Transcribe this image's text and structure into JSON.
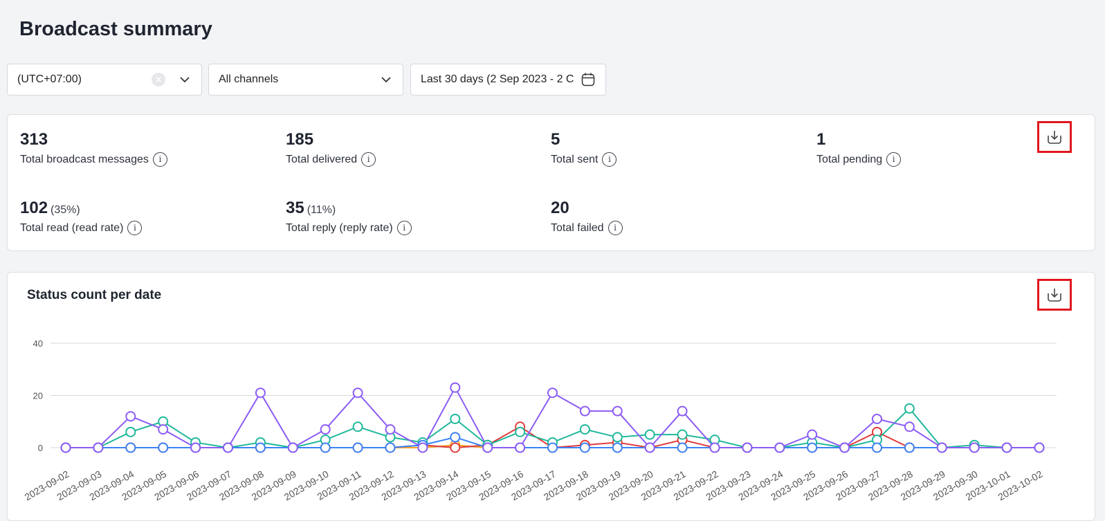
{
  "header": {
    "title": "Broadcast summary"
  },
  "filters": {
    "timezone": "(UTC+07:00)",
    "channel": "All channels",
    "date_range": "Last 30 days (2 Sep 2023 - 2 C"
  },
  "stats": [
    {
      "value": "313",
      "pct": "",
      "label": "Total broadcast messages"
    },
    {
      "value": "185",
      "pct": "",
      "label": "Total delivered"
    },
    {
      "value": "5",
      "pct": "",
      "label": "Total sent"
    },
    {
      "value": "1",
      "pct": "",
      "label": "Total pending"
    },
    {
      "value": "102",
      "pct": "(35%)",
      "label": "Total read (read rate)"
    },
    {
      "value": "35",
      "pct": "(11%)",
      "label": "Total reply (reply rate)"
    },
    {
      "value": "20",
      "pct": "",
      "label": "Total failed"
    }
  ],
  "chart_panel": {
    "title": "Status count per date"
  },
  "chart_data": {
    "type": "line",
    "title": "Status count per date",
    "xlabel": "",
    "ylabel": "",
    "ylim": [
      0,
      40
    ],
    "yticks": [
      0,
      20,
      40
    ],
    "grid": true,
    "categories": [
      "2023-09-02",
      "2023-09-03",
      "2023-09-04",
      "2023-09-05",
      "2023-09-06",
      "2023-09-07",
      "2023-09-08",
      "2023-09-09",
      "2023-09-10",
      "2023-09-11",
      "2023-09-12",
      "2023-09-13",
      "2023-09-14",
      "2023-09-15",
      "2023-09-16",
      "2023-09-17",
      "2023-09-18",
      "2023-09-19",
      "2023-09-20",
      "2023-09-21",
      "2023-09-22",
      "2023-09-23",
      "2023-09-24",
      "2023-09-25",
      "2023-09-26",
      "2023-09-27",
      "2023-09-28",
      "2023-09-29",
      "2023-09-30",
      "2023-10-01",
      "2023-10-02"
    ],
    "series": [
      {
        "color": "#f5a524",
        "values": [
          0,
          0,
          0,
          0,
          0,
          0,
          0,
          0,
          0,
          0,
          0,
          0,
          1,
          0,
          0,
          0,
          0,
          0,
          0,
          0,
          0,
          0,
          0,
          0,
          0,
          0,
          0,
          0,
          0,
          0,
          0
        ]
      },
      {
        "color": "#e03b3b",
        "values": [
          0,
          0,
          0,
          0,
          0,
          0,
          0,
          0,
          0,
          0,
          0,
          1,
          0,
          1,
          8,
          0,
          1,
          2,
          0,
          3,
          0,
          0,
          0,
          0,
          0,
          6,
          0,
          0,
          0,
          0,
          0
        ]
      },
      {
        "color": "#1fb89a",
        "values": [
          0,
          0,
          6,
          10,
          2,
          0,
          2,
          0,
          3,
          8,
          4,
          2,
          11,
          1,
          6,
          2,
          7,
          4,
          5,
          5,
          3,
          0,
          0,
          2,
          0,
          3,
          15,
          0,
          1,
          0,
          0
        ]
      },
      {
        "color": "#3b82f6",
        "values": [
          0,
          0,
          0,
          0,
          0,
          0,
          0,
          0,
          0,
          0,
          0,
          1,
          4,
          0,
          0,
          0,
          0,
          0,
          0,
          0,
          0,
          0,
          0,
          0,
          0,
          0,
          0,
          0,
          0,
          0,
          0
        ]
      },
      {
        "color": "#8b5cf6",
        "values": [
          0,
          0,
          12,
          7,
          0,
          0,
          21,
          0,
          7,
          21,
          7,
          0,
          23,
          0,
          0,
          21,
          14,
          14,
          0,
          14,
          0,
          0,
          0,
          5,
          0,
          11,
          8,
          0,
          0,
          0,
          0
        ]
      }
    ]
  }
}
